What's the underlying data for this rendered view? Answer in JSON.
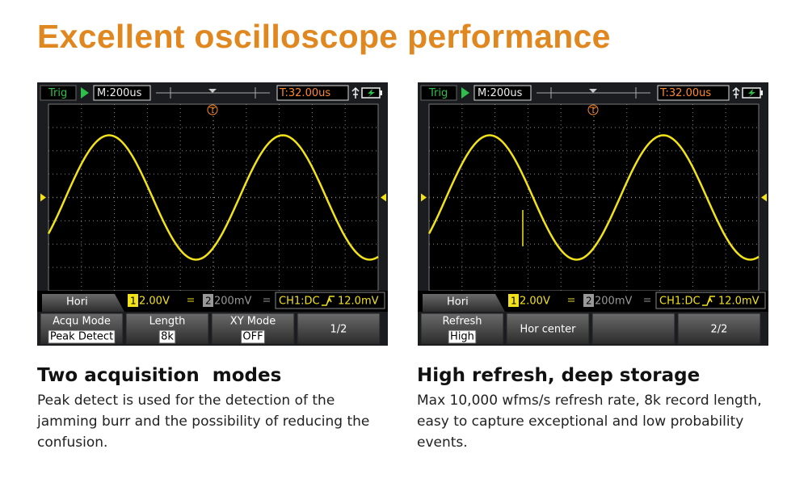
{
  "title": "Excellent oscilloscope performance",
  "panels": [
    {
      "screen": {
        "trig": "Trig",
        "timebase": "M:200us",
        "trigger_time": "T:32.00us",
        "menu": "Hori",
        "ch1_number": "1",
        "ch1_scale": "2.00V",
        "ch2_number": "2",
        "ch2_scale": "200mV",
        "coupling": "CH1:DC",
        "trigger_level": "12.0mV",
        "softkeys": [
          {
            "label": "Acqu Mode",
            "value": "Peak Detect"
          },
          {
            "label": "Length",
            "value": "8k"
          },
          {
            "label": "XY Mode",
            "value": "OFF"
          },
          {
            "label": "1/2"
          }
        ]
      },
      "heading": "Two acquisition  modes",
      "text": "Peak detect is used for the detection of the jamming burr and the possibility of reducing the confusion."
    },
    {
      "screen": {
        "trig": "Trig",
        "timebase": "M:200us",
        "trigger_time": "T:32.00us",
        "menu": "Hori",
        "ch1_number": "1",
        "ch1_scale": "2.00V",
        "ch2_number": "2",
        "ch2_scale": "200mV",
        "coupling": "CH1:DC",
        "trigger_level": "12.0mV",
        "softkeys": [
          {
            "label": "Refresh",
            "value": "High"
          },
          {
            "label": "Hor center"
          },
          null,
          {
            "label": "2/2"
          }
        ]
      },
      "heading": "High refresh, deep storage",
      "text": "Max 10,000 wfms/s refresh rate, 8k record length, easy to capture exceptional and low probability events."
    }
  ]
}
